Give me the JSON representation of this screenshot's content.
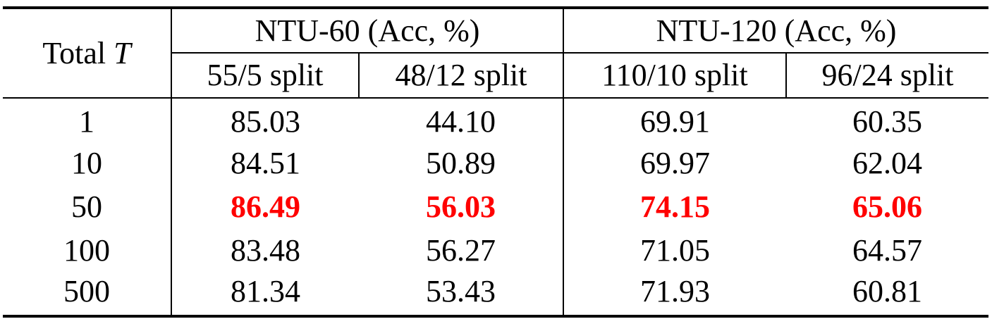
{
  "table": {
    "row_header": {
      "label": "Total ",
      "var": "T"
    },
    "groups": [
      {
        "label": "NTU-60 (Acc, %)"
      },
      {
        "label": "NTU-120  (Acc, %)"
      }
    ],
    "splits": [
      "55/5 split",
      "48/12 split",
      "110/10 split",
      "96/24 split"
    ],
    "rows": [
      {
        "t": "1",
        "cells": [
          "85.03",
          "44.10",
          "69.91",
          "60.35"
        ]
      },
      {
        "t": "10",
        "cells": [
          "84.51",
          "50.89",
          "69.97",
          "62.04"
        ]
      },
      {
        "t": "50",
        "cells": [
          "86.49",
          "56.03",
          "74.15",
          "65.06"
        ],
        "highlight": true
      },
      {
        "t": "100",
        "cells": [
          "83.48",
          "56.27",
          "71.05",
          "64.57"
        ]
      },
      {
        "t": "500",
        "cells": [
          "81.34",
          "53.43",
          "71.93",
          "60.81"
        ]
      }
    ],
    "highlight_color": "#ff0000"
  }
}
